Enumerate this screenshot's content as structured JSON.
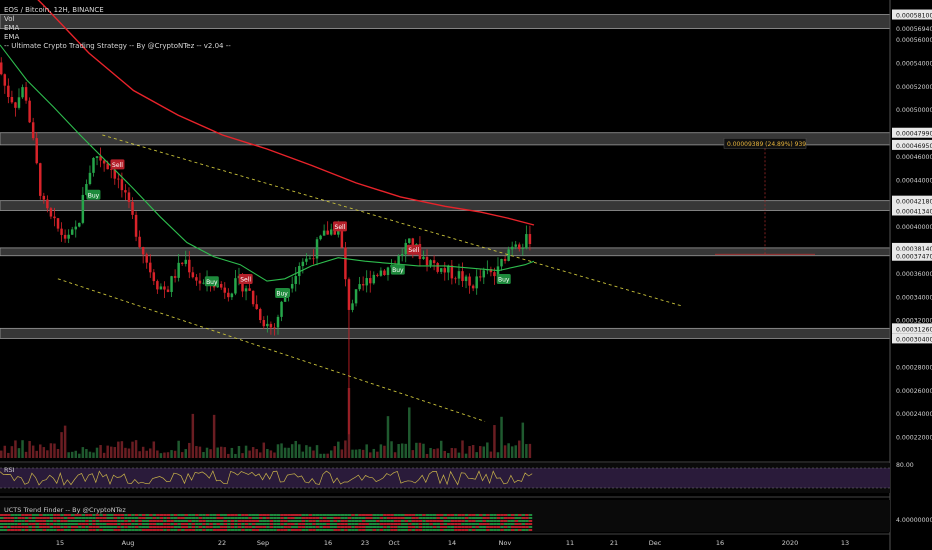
{
  "chart_data": {
    "type": "candlestick",
    "title": "EOS / Bitcoin, 12H, BINANCE",
    "indicators": [
      "Vol",
      "EMA",
      "EMA",
      "-- Ultimate Crypto Trading Strategy -- By @CryptoNTez -- v2.04 --"
    ],
    "price_axis": {
      "min": 0.0002,
      "max": 0.00059,
      "tick_labels": [
        "0.00058100",
        "0.00056940",
        "0.00056000",
        "0.00054000",
        "0.00052000",
        "0.00050000",
        "0.00047990",
        "0.00046950",
        "0.00046000",
        "0.00044000",
        "0.00042180",
        "0.00041340",
        "0.00040000",
        "0.00038140",
        "0.00037470",
        "0.00036000",
        "0.00034000",
        "0.00032000",
        "0.00031260",
        "0.00030400",
        "0.00028000",
        "0.00026000",
        "0.00024000",
        "0.00022000"
      ]
    },
    "time_axis": {
      "tick_labels": [
        "15",
        "Aug",
        "22",
        "Sep",
        "16",
        "23",
        "Oct",
        "14",
        "Nov",
        "11",
        "21",
        "Dec",
        "16",
        "2020",
        "13"
      ]
    },
    "zones": [
      {
        "from": 0.000569,
        "to": 0.000581
      },
      {
        "from": 0.0004695,
        "to": 0.0004799
      },
      {
        "from": 0.0004134,
        "to": 0.0004218
      },
      {
        "from": 0.0003747,
        "to": 0.0003814
      },
      {
        "from": 0.000304,
        "to": 0.0003126
      }
    ],
    "series": [
      {
        "name": "EMA",
        "color": "#e8232a",
        "values": [
          [
            0.015,
            0.000615
          ],
          [
            0.05,
            0.000588
          ],
          [
            0.1,
            0.000548
          ],
          [
            0.15,
            0.000516
          ],
          [
            0.2,
            0.000495
          ],
          [
            0.25,
            0.000478
          ],
          [
            0.3,
            0.000466
          ],
          [
            0.35,
            0.000452
          ],
          [
            0.4,
            0.000437
          ],
          [
            0.45,
            0.000425
          ],
          [
            0.5,
            0.000417
          ],
          [
            0.54,
            0.000412
          ],
          [
            0.57,
            0.000407
          ],
          [
            0.6,
            0.000401
          ]
        ]
      },
      {
        "name": "EMA",
        "color": "#2ebd4e",
        "values": [
          [
            0.0,
            0.000555
          ],
          [
            0.03,
            0.000525
          ],
          [
            0.06,
            0.000502
          ],
          [
            0.09,
            0.000478
          ],
          [
            0.12,
            0.000455
          ],
          [
            0.15,
            0.000432
          ],
          [
            0.18,
            0.000408
          ],
          [
            0.21,
            0.000386
          ],
          [
            0.24,
            0.000374
          ],
          [
            0.27,
            0.000367
          ],
          [
            0.3,
            0.000353
          ],
          [
            0.32,
            0.000355
          ],
          [
            0.35,
            0.000366
          ],
          [
            0.38,
            0.000373
          ],
          [
            0.41,
            0.00037
          ],
          [
            0.44,
            0.000368
          ],
          [
            0.47,
            0.000366
          ],
          [
            0.5,
            0.000366
          ],
          [
            0.53,
            0.000364
          ],
          [
            0.56,
            0.000362
          ],
          [
            0.59,
            0.000367
          ],
          [
            0.6,
            0.00037
          ]
        ]
      }
    ],
    "candles_summary": {
      "start": 0.000515,
      "high": 0.000475,
      "low_spike": 0.000222,
      "last": 0.000385
    },
    "signals": [
      {
        "label": "Buy",
        "x": 0.105,
        "y": 0.000426,
        "type": "buy"
      },
      {
        "label": "Sell",
        "x": 0.132,
        "y": 0.000452,
        "type": "sell"
      },
      {
        "label": "Buy",
        "x": 0.238,
        "y": 0.000352,
        "type": "buy"
      },
      {
        "label": "Sell",
        "x": 0.276,
        "y": 0.000354,
        "type": "sell"
      },
      {
        "label": "Buy",
        "x": 0.317,
        "y": 0.000342,
        "type": "buy"
      },
      {
        "label": "Sell",
        "x": 0.382,
        "y": 0.000399,
        "type": "sell"
      },
      {
        "label": "Sell",
        "x": 0.465,
        "y": 0.000379,
        "type": "sell"
      },
      {
        "label": "Buy",
        "x": 0.447,
        "y": 0.000362,
        "type": "buy"
      },
      {
        "label": "Buy",
        "x": 0.566,
        "y": 0.000354,
        "type": "buy"
      }
    ],
    "trend_lines": [
      {
        "from": [
          0.115,
          0.000478
        ],
        "to": [
          0.765,
          0.000332
        ]
      },
      {
        "from": [
          0.065,
          0.000355
        ],
        "to": [
          0.545,
          0.000233
        ]
      }
    ],
    "measure": {
      "label": "0.00009389 (24.89%) 939",
      "from": 0.000376,
      "to": 0.00047
    },
    "rsi": {
      "label": "RSI",
      "tick_labels": [
        "80.00"
      ]
    },
    "trend_finder": {
      "label": "UCTS Trend Finder -- By @CryptoNTez",
      "tick_labels": [
        "4.00000000"
      ]
    }
  }
}
